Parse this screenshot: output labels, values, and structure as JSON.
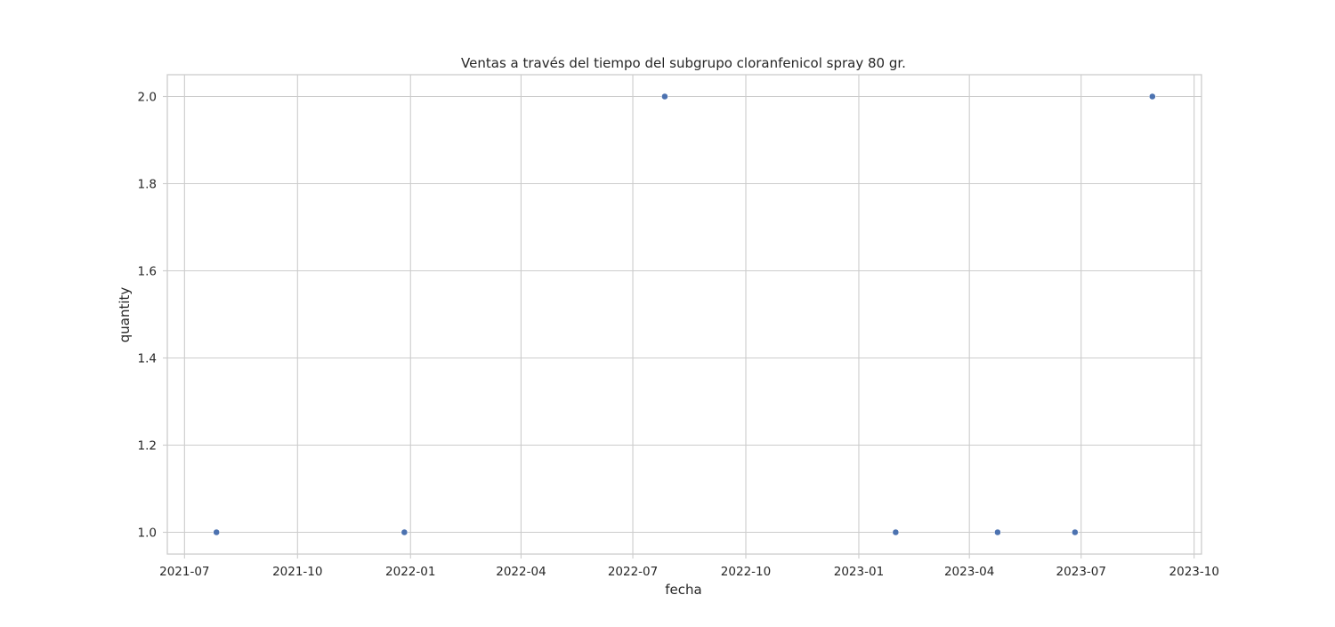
{
  "chart_data": {
    "type": "scatter",
    "title": "Ventas a través del tiempo del subgrupo cloranfenicol spray 80 gr.",
    "xlabel": "fecha",
    "ylabel": "quantity",
    "x_type": "date",
    "xlim": [
      "2021-06-17",
      "2023-10-07"
    ],
    "ylim": [
      0.95,
      2.05
    ],
    "x_ticks": [
      "2021-07",
      "2021-10",
      "2022-01",
      "2022-04",
      "2022-07",
      "2022-10",
      "2023-01",
      "2023-04",
      "2023-07",
      "2023-10"
    ],
    "x_tick_dates": [
      "2021-07-01",
      "2021-10-01",
      "2022-01-01",
      "2022-04-01",
      "2022-07-01",
      "2022-10-01",
      "2023-01-01",
      "2023-04-01",
      "2023-07-01",
      "2023-10-01"
    ],
    "y_ticks": [
      "1.0",
      "1.2",
      "1.4",
      "1.6",
      "1.8",
      "2.0"
    ],
    "grid": true,
    "color": "#4c72b0",
    "points": [
      {
        "x": "2021-07-27",
        "y": 1
      },
      {
        "x": "2021-12-27",
        "y": 1
      },
      {
        "x": "2022-07-27",
        "y": 2
      },
      {
        "x": "2023-01-31",
        "y": 1
      },
      {
        "x": "2023-04-24",
        "y": 1
      },
      {
        "x": "2023-06-26",
        "y": 1
      },
      {
        "x": "2023-08-28",
        "y": 2
      }
    ]
  }
}
